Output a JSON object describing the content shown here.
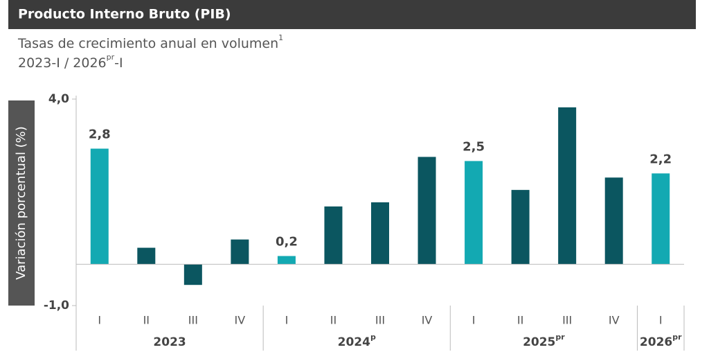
{
  "chart_data": {
    "type": "bar",
    "title": "Producto Interno Bruto (PIB)",
    "subtitle": {
      "text": "Tasas de crecimiento anual en volumen",
      "superscript": "1"
    },
    "period": {
      "start": "2023-I / 2026",
      "superscript": "pr",
      "end": "-I"
    },
    "y_label": "Variación porcentual (%)",
    "categories": [
      "I",
      "II",
      "III",
      "IV",
      "I",
      "II",
      "III",
      "IV",
      "I",
      "II",
      "III",
      "IV",
      "I"
    ],
    "groups": [
      {
        "label": "2023",
        "span": 4
      },
      {
        "label": "2024",
        "superscript": "p",
        "span": 4
      },
      {
        "label": "2025",
        "superscript": "pr",
        "span": 4
      },
      {
        "label": "2026",
        "superscript": "pr",
        "span": 1
      }
    ],
    "values": [
      2.8,
      0.4,
      -0.5,
      0.6,
      0.2,
      1.4,
      1.5,
      2.6,
      2.5,
      1.8,
      3.8,
      2.1,
      2.2
    ],
    "value_labels": [
      "2,8",
      null,
      null,
      null,
      "0,2",
      null,
      null,
      null,
      "2,5",
      null,
      null,
      null,
      "2,2"
    ],
    "colors": [
      "#13a9b2",
      "#0b5660",
      "#0b5660",
      "#0b5660",
      "#13a9b2",
      "#0b5660",
      "#0b5660",
      "#0b5660",
      "#13a9b2",
      "#0b5660",
      "#0b5660",
      "#0b5660",
      "#13a9b2"
    ],
    "ylim": [
      -1,
      4
    ],
    "yticks": [
      {
        "value": -1,
        "label": "-1,0"
      },
      {
        "value": 4,
        "label": "4,0"
      }
    ],
    "grid": false
  }
}
